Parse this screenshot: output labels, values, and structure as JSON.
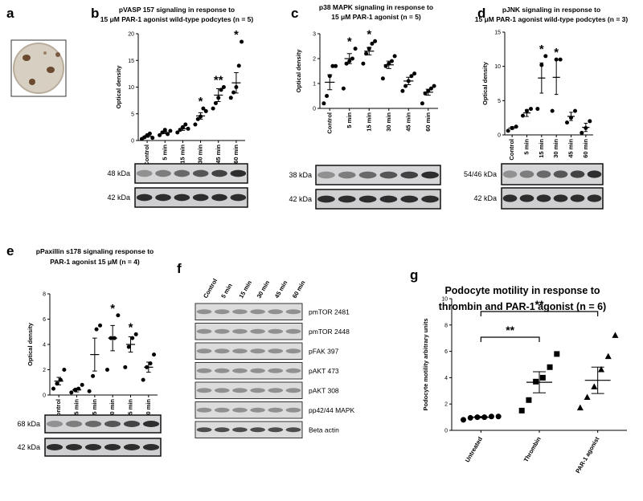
{
  "figure": {
    "panel_a": "a",
    "panel_f": {
      "label": "f",
      "lanes": [
        "Control",
        "5 min",
        "15 min",
        "30 min",
        "45 min",
        "60 min"
      ],
      "bands": [
        "pmTOR 2481",
        "pmTOR 2448",
        "pFAK 397",
        "pAKT 473",
        "pAKT 308",
        "pp42/44 MAPK",
        "Beta actin"
      ]
    }
  },
  "chart_data": [
    {
      "type": "dotplot",
      "panel": "b",
      "title": [
        "pVASP 157 signaling in response to",
        "15 μM PAR-1 agonist wild-type podcytes (n = 5)"
      ],
      "y_label": "Optical density",
      "categories": [
        "Control",
        "5 min",
        "15 min",
        "30 min",
        "45 min",
        "60 min"
      ],
      "points": [
        [
          0.3,
          0.6,
          1.0,
          1.3,
          0.5
        ],
        [
          1.0,
          1.5,
          2.0,
          1.2,
          1.8
        ],
        [
          1.5,
          2.0,
          2.5,
          3.0,
          2.2
        ],
        [
          3.0,
          4.0,
          4.5,
          6.0,
          5.5
        ],
        [
          6.0,
          7.0,
          8.0,
          9.5,
          10.0
        ],
        [
          8.0,
          9.0,
          10.0,
          14.0,
          18.5
        ]
      ],
      "means": [
        0.8,
        1.5,
        2.2,
        4.6,
        8.5,
        10.8
      ],
      "sems": [
        0.2,
        0.2,
        0.3,
        0.6,
        1.2,
        1.9
      ],
      "significance": [
        null,
        null,
        null,
        "*",
        "**",
        "*"
      ],
      "ylim": [
        0,
        20
      ],
      "yticks": [
        0,
        5,
        10,
        15,
        20
      ],
      "blot_labels": [
        "48 kDa",
        "42 kDa"
      ],
      "color": "#000000"
    },
    {
      "type": "dotplot",
      "panel": "c",
      "title": [
        "p38 MAPK signaling in response to",
        "15 μM PAR-1 agonist (n = 5)"
      ],
      "y_label": "Optical density",
      "categories": [
        "Control",
        "5 min",
        "15 min",
        "30 min",
        "45 min",
        "60 min"
      ],
      "points": [
        [
          0.2,
          0.5,
          1.3,
          1.7,
          1.7
        ],
        [
          0.8,
          1.8,
          1.9,
          2.0,
          2.4
        ],
        [
          1.8,
          2.2,
          2.4,
          2.6,
          2.7
        ],
        [
          1.2,
          1.7,
          1.8,
          1.9,
          2.1
        ],
        [
          0.7,
          0.9,
          1.1,
          1.3,
          1.4
        ],
        [
          0.2,
          0.6,
          0.7,
          0.8,
          0.9
        ]
      ],
      "means": [
        1.05,
        2.0,
        2.3,
        1.75,
        1.1,
        0.65
      ],
      "sems": [
        0.3,
        0.2,
        0.15,
        0.15,
        0.15,
        0.12
      ],
      "significance": [
        null,
        "*",
        "*",
        null,
        null,
        null
      ],
      "ylim": [
        0,
        3
      ],
      "yticks": [
        0,
        1,
        2,
        3
      ],
      "blot_labels": [
        "38 kDa",
        "42 kDa"
      ],
      "color": "#000000"
    },
    {
      "type": "dotplot",
      "panel": "d",
      "title": [
        "pJNK signaling in response to",
        "15 μM PAR-1 agonist wild-type podcytes (n = 3)"
      ],
      "y_label": "Optical density",
      "categories": [
        "Control",
        "5 min",
        "15 min",
        "30 min",
        "45 min",
        "60 min"
      ],
      "points": [
        [
          0.6,
          1.0,
          1.2
        ],
        [
          2.8,
          3.5,
          3.8
        ],
        [
          3.8,
          10.2,
          11.5
        ],
        [
          3.5,
          11.0,
          11.0
        ],
        [
          1.8,
          2.5,
          3.5
        ],
        [
          0.3,
          1.0,
          2.0
        ]
      ],
      "means": [
        1.0,
        3.2,
        8.3,
        8.4,
        2.7,
        1.1
      ],
      "sems": [
        0.2,
        0.5,
        2.2,
        2.5,
        0.6,
        0.6
      ],
      "significance": [
        null,
        null,
        "*",
        "*",
        null,
        null
      ],
      "ylim": [
        0,
        15
      ],
      "yticks": [
        0,
        5,
        10,
        15
      ],
      "blot_labels": [
        "54/46 kDa",
        "42 kDa"
      ],
      "color": "#000000"
    },
    {
      "type": "dotplot",
      "panel": "e",
      "title": [
        "pPaxillin s178 signaling response to",
        "PAR-1 agonist 15 μM (n = 4)"
      ],
      "y_label": "Optical density",
      "categories": [
        "Control",
        "5 min",
        "15 min",
        "30 min",
        "45 min",
        "60 min"
      ],
      "points": [
        [
          0.5,
          0.9,
          1.2,
          2.0
        ],
        [
          0.2,
          0.4,
          0.5,
          0.8
        ],
        [
          0.3,
          1.5,
          5.2,
          5.5
        ],
        [
          2.0,
          4.5,
          4.5,
          6.3
        ],
        [
          2.2,
          3.8,
          4.5,
          4.8
        ],
        [
          1.2,
          2.2,
          2.5,
          3.2
        ]
      ],
      "means": [
        1.1,
        0.4,
        3.2,
        4.5,
        4.0,
        2.2
      ],
      "sems": [
        0.3,
        0.15,
        1.3,
        1.0,
        0.6,
        0.4
      ],
      "significance": [
        null,
        null,
        null,
        "*",
        "*",
        null
      ],
      "ylim": [
        0,
        8
      ],
      "yticks": [
        0,
        2,
        4,
        6,
        8
      ],
      "blot_labels": [
        "68 kDa",
        "42 kDa"
      ],
      "color": "#000000"
    },
    {
      "type": "dotplot",
      "panel": "g",
      "title": [
        "Podocyte motility in response to",
        "thrombin and PAR-1 agonist (n = 6)"
      ],
      "y_label": "Podocyte motility arbitrary units",
      "categories": [
        "Untreated",
        "Thrombin",
        "PAR-1 agonist"
      ],
      "points": [
        [
          0.8,
          0.95,
          1.0,
          1.0,
          1.05,
          1.05
        ],
        [
          1.5,
          2.3,
          3.7,
          4.0,
          4.8,
          5.8
        ],
        [
          1.7,
          2.5,
          3.3,
          4.6,
          5.6,
          7.2
        ]
      ],
      "means": [
        1.0,
        3.65,
        3.8
      ],
      "sems": [
        0.05,
        0.8,
        1.0
      ],
      "markers": [
        "circle",
        "square",
        "triangle"
      ],
      "comparisons": [
        {
          "label": "**",
          "from": "Untreated",
          "to": "Thrombin"
        },
        {
          "label": "**",
          "from": "Untreated",
          "to": "PAR-1 agonist"
        }
      ],
      "ylim": [
        0,
        10
      ],
      "yticks": [
        0,
        2,
        4,
        6,
        8,
        10
      ],
      "color": "#000000"
    }
  ]
}
